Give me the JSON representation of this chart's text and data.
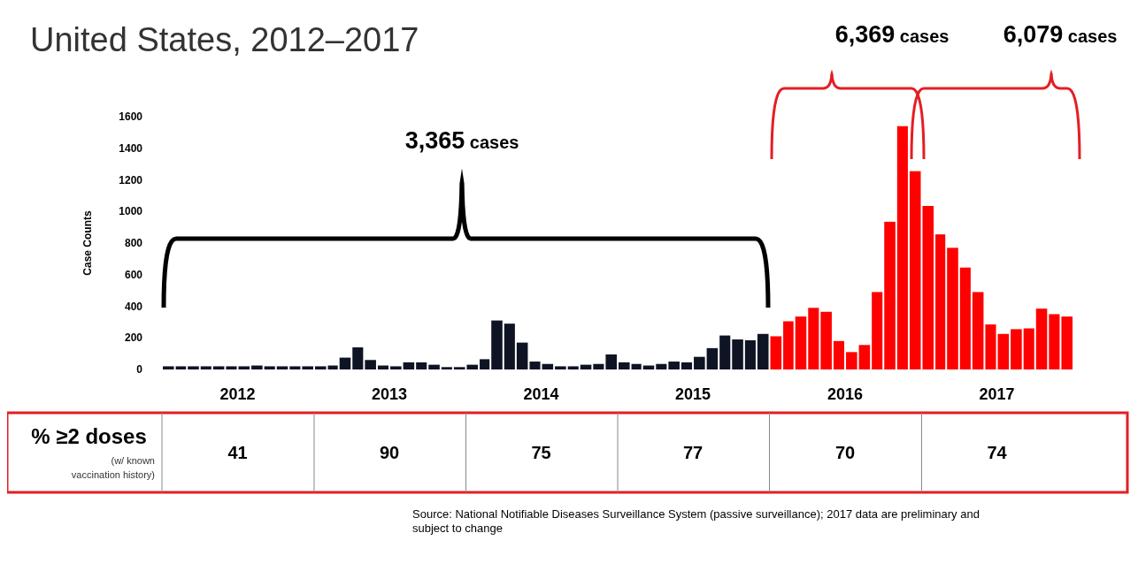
{
  "chart_data": {
    "type": "bar",
    "title": "United States, 2012–2017",
    "ylabel": "Case Counts",
    "x": [
      "2012-01",
      "2012-02",
      "2012-03",
      "2012-04",
      "2012-05",
      "2012-06",
      "2012-07",
      "2012-08",
      "2012-09",
      "2012-10",
      "2012-11",
      "2012-12",
      "2013-01",
      "2013-02",
      "2013-03",
      "2013-04",
      "2013-05",
      "2013-06",
      "2013-07",
      "2013-08",
      "2013-09",
      "2013-10",
      "2013-11",
      "2013-12",
      "2014-01",
      "2014-02",
      "2014-03",
      "2014-04",
      "2014-05",
      "2014-06",
      "2014-07",
      "2014-08",
      "2014-09",
      "2014-10",
      "2014-11",
      "2014-12",
      "2015-01",
      "2015-02",
      "2015-03",
      "2015-04",
      "2015-05",
      "2015-06",
      "2015-07",
      "2015-08",
      "2015-09",
      "2015-10",
      "2015-11",
      "2015-12",
      "2016-01",
      "2016-02",
      "2016-03",
      "2016-04",
      "2016-05",
      "2016-06",
      "2016-07",
      "2016-08",
      "2016-09",
      "2016-10",
      "2016-11",
      "2016-12",
      "2017-01",
      "2017-02",
      "2017-03",
      "2017-04",
      "2017-05",
      "2017-06",
      "2017-07",
      "2017-08",
      "2017-09",
      "2017-10",
      "2017-11",
      "2017-12"
    ],
    "values": [
      20,
      20,
      20,
      20,
      20,
      20,
      20,
      25,
      20,
      20,
      20,
      20,
      20,
      25,
      75,
      140,
      60,
      25,
      20,
      45,
      45,
      30,
      15,
      15,
      30,
      65,
      310,
      290,
      170,
      50,
      35,
      20,
      20,
      30,
      35,
      95,
      45,
      35,
      25,
      35,
      50,
      45,
      80,
      135,
      215,
      190,
      185,
      225,
      210,
      305,
      335,
      390,
      365,
      180,
      110,
      155,
      490,
      935,
      1540,
      1255,
      1035,
      855,
      770,
      645,
      490,
      285,
      225,
      255,
      260,
      385,
      350,
      335
    ],
    "colors": [
      "#0f1424",
      "#0f1424",
      "#0f1424",
      "#0f1424",
      "#0f1424",
      "#0f1424",
      "#0f1424",
      "#0f1424",
      "#0f1424",
      "#0f1424",
      "#0f1424",
      "#0f1424",
      "#0f1424",
      "#0f1424",
      "#0f1424",
      "#0f1424",
      "#0f1424",
      "#0f1424",
      "#0f1424",
      "#0f1424",
      "#0f1424",
      "#0f1424",
      "#0f1424",
      "#0f1424",
      "#0f1424",
      "#0f1424",
      "#0f1424",
      "#0f1424",
      "#0f1424",
      "#0f1424",
      "#0f1424",
      "#0f1424",
      "#0f1424",
      "#0f1424",
      "#0f1424",
      "#0f1424",
      "#0f1424",
      "#0f1424",
      "#0f1424",
      "#0f1424",
      "#0f1424",
      "#0f1424",
      "#0f1424",
      "#0f1424",
      "#0f1424",
      "#0f1424",
      "#0f1424",
      "#0f1424",
      "#ff0000",
      "#ff0000",
      "#ff0000",
      "#ff0000",
      "#ff0000",
      "#ff0000",
      "#ff0000",
      "#ff0000",
      "#ff0000",
      "#ff0000",
      "#ff0000",
      "#ff0000",
      "#ff0000",
      "#ff0000",
      "#ff0000",
      "#ff0000",
      "#ff0000",
      "#ff0000",
      "#ff0000",
      "#ff0000",
      "#ff0000",
      "#ff0000",
      "#ff0000",
      "#ff0000"
    ],
    "xlim": [
      "2012-01",
      "2018-01"
    ],
    "xticks": [
      {
        "value": "2012-07",
        "label": "2012"
      },
      {
        "value": "2013-07",
        "label": "2013"
      },
      {
        "value": "2014-07",
        "label": "2014"
      },
      {
        "value": "2015-07",
        "label": "2015"
      },
      {
        "value": "2016-07",
        "label": "2016"
      },
      {
        "value": "2017-07",
        "label": "2017"
      }
    ],
    "ylim": [
      0,
      1600
    ],
    "yticks": [
      0,
      200,
      400,
      600,
      800,
      1000,
      1200,
      1400,
      1600
    ],
    "grid": false,
    "annotations": [
      "3,365 cases",
      "6,369 cases",
      "6,079 cases",
      "% ≥2 doses",
      "(w/ known vaccination history)",
      "41",
      "90",
      "75",
      "77",
      "70",
      "74",
      "Source: National Notifiable Diseases Surveillance System (passive surveillance); 2017 data are preliminary and subject to change"
    ]
  }
}
